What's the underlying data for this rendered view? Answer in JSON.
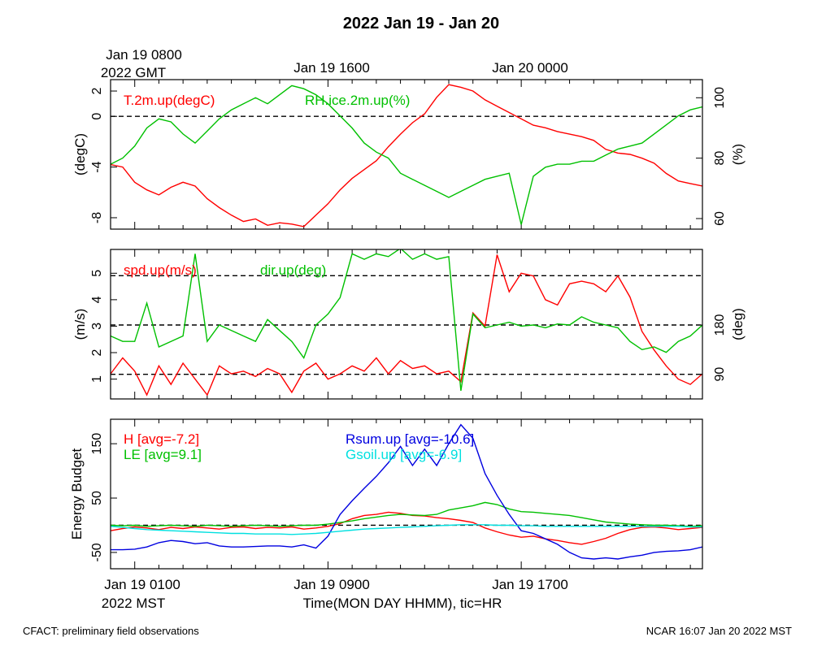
{
  "figure": {
    "title": "2022 Jan 19 - Jan 20",
    "footer_left": "CFACT: preliminary field observations",
    "footer_right": "NCAR 16:07 Jan 20 2022 MST"
  },
  "colors": {
    "red": "#ff0000",
    "green": "#00c000",
    "blue": "#0000e0",
    "cyan": "#00e0e0",
    "black": "#000000"
  },
  "top_axis": {
    "first_label_line1": "Jan 19 0800",
    "first_label_line2": "2022 GMT",
    "labels": [
      "Jan 19 1600",
      "Jan 20 0000"
    ]
  },
  "bottom_axis": {
    "labels": [
      "Jan 19 0100",
      "Jan 19 0900",
      "Jan 19 1700"
    ],
    "first_label_line2": "2022 MST",
    "xlabel": "Time(MON DAY HHMM), tic=HR"
  },
  "chart_data": [
    {
      "type": "line",
      "title": "",
      "xlabel": "Time(MON DAY HHMM), tic=HR",
      "x_unit": "hours after Jan 19 0000 MST",
      "xlim": [
        0.0,
        24.5
      ],
      "ylabel": "(degC)",
      "ylim": [
        -8.9,
        2.9
      ],
      "yticks": [
        -8,
        -4,
        0,
        2
      ],
      "ylabel_right": "(%)",
      "ylim_right": [
        56.5,
        106
      ],
      "yticks_right": [
        60,
        80,
        100
      ],
      "reference_lines": [
        0
      ],
      "series": [
        {
          "name": "T.2m.up(degC)",
          "axis": "left",
          "color": "#ff0000",
          "x": [
            0.0,
            0.5,
            1.0,
            1.5,
            2.0,
            2.5,
            3.0,
            3.5,
            4.0,
            4.5,
            5.0,
            5.5,
            6.0,
            6.5,
            7.0,
            7.5,
            8.0,
            8.5,
            9.0,
            9.5,
            10.0,
            10.5,
            11.0,
            11.5,
            12.0,
            12.5,
            13.0,
            13.5,
            14.0,
            14.5,
            15.0,
            15.5,
            16.0,
            16.5,
            17.0,
            17.5,
            18.0,
            18.5,
            19.0,
            19.5,
            20.0,
            20.5,
            21.0,
            21.5,
            22.0,
            22.5,
            23.0,
            23.5,
            24.0,
            24.5
          ],
          "y": [
            -3.8,
            -4.0,
            -5.2,
            -5.8,
            -6.2,
            -5.6,
            -5.2,
            -5.5,
            -6.5,
            -7.2,
            -7.8,
            -8.3,
            -8.1,
            -8.6,
            -8.4,
            -8.5,
            -8.7,
            -7.8,
            -6.9,
            -5.8,
            -4.9,
            -4.2,
            -3.5,
            -2.4,
            -1.4,
            -0.5,
            0.2,
            1.5,
            2.5,
            2.3,
            2.0,
            1.3,
            0.8,
            0.3,
            -0.2,
            -0.7,
            -0.9,
            -1.2,
            -1.4,
            -1.6,
            -1.9,
            -2.6,
            -2.9,
            -3.0,
            -3.3,
            -3.7,
            -4.5,
            -5.1,
            -5.3,
            -5.5
          ]
        },
        {
          "name": "RH.ice.2m.up(%)",
          "axis": "right",
          "color": "#00c000",
          "x": [
            0.0,
            0.5,
            1.0,
            1.5,
            2.0,
            2.5,
            3.0,
            3.5,
            4.0,
            4.5,
            5.0,
            5.5,
            6.0,
            6.5,
            7.0,
            7.5,
            8.0,
            8.5,
            9.0,
            9.5,
            10.0,
            10.5,
            11.0,
            11.5,
            12.0,
            12.5,
            13.0,
            13.5,
            14.0,
            14.5,
            15.0,
            15.5,
            16.0,
            16.5,
            17.0,
            17.5,
            18.0,
            18.5,
            19.0,
            19.5,
            20.0,
            20.5,
            21.0,
            21.5,
            22.0,
            22.5,
            23.0,
            23.5,
            24.0,
            24.5
          ],
          "y": [
            78,
            80,
            84,
            90,
            93,
            92,
            88,
            85,
            89,
            93,
            96,
            98,
            100,
            98,
            101,
            104,
            103,
            101,
            98,
            94,
            90,
            85,
            82,
            80,
            75,
            73,
            71,
            69,
            67,
            69,
            71,
            73,
            74,
            75,
            58,
            74,
            77,
            78,
            78,
            79,
            79,
            81,
            83,
            84,
            85,
            88,
            91,
            94,
            96,
            97
          ]
        }
      ]
    },
    {
      "type": "line",
      "title": "",
      "x_unit": "hours after Jan 19 0000 MST",
      "xlim": [
        0.0,
        24.5
      ],
      "ylabel": "(m/s)",
      "ylim": [
        0.25,
        5.9
      ],
      "yticks": [
        1,
        2,
        3,
        4,
        5
      ],
      "ylabel_right": "(deg)",
      "ylim_right": [
        45,
        318
      ],
      "yticks_right": [
        90,
        180
      ],
      "reference_lines_right": [
        90,
        180,
        270
      ],
      "series": [
        {
          "name": "spd.up(m/s)",
          "axis": "left",
          "color": "#ff0000",
          "x": [
            0.0,
            0.5,
            1.0,
            1.5,
            2.0,
            2.5,
            3.0,
            3.5,
            4.0,
            4.5,
            5.0,
            5.5,
            6.0,
            6.5,
            7.0,
            7.5,
            8.0,
            8.5,
            9.0,
            9.5,
            10.0,
            10.5,
            11.0,
            11.5,
            12.0,
            12.5,
            13.0,
            13.5,
            14.0,
            14.5,
            15.0,
            15.5,
            16.0,
            16.5,
            17.0,
            17.5,
            18.0,
            18.5,
            19.0,
            19.5,
            20.0,
            20.5,
            21.0,
            21.5,
            22.0,
            22.5,
            23.0,
            23.5,
            24.0,
            24.5
          ],
          "y": [
            1.2,
            1.8,
            1.3,
            0.4,
            1.5,
            0.8,
            1.6,
            1.0,
            0.4,
            1.5,
            1.2,
            1.3,
            1.1,
            1.4,
            1.2,
            0.5,
            1.3,
            1.6,
            1.0,
            1.2,
            1.5,
            1.3,
            1.8,
            1.2,
            1.7,
            1.4,
            1.5,
            1.2,
            1.3,
            0.9,
            3.5,
            3.0,
            5.7,
            4.3,
            5.0,
            4.9,
            4.0,
            3.8,
            4.6,
            4.7,
            4.6,
            4.3,
            4.9,
            4.1,
            2.8,
            2.1,
            1.5,
            1.0,
            0.8,
            1.2
          ]
        },
        {
          "name": "dir.up(deg)",
          "axis": "right",
          "color": "#00c000",
          "x": [
            0.0,
            0.5,
            1.0,
            1.5,
            2.0,
            2.5,
            3.0,
            3.5,
            4.0,
            4.5,
            5.0,
            5.5,
            6.0,
            6.5,
            7.0,
            7.5,
            8.0,
            8.5,
            9.0,
            9.5,
            10.0,
            10.5,
            11.0,
            11.5,
            12.0,
            12.5,
            13.0,
            13.5,
            14.0,
            14.5,
            15.0,
            15.5,
            16.0,
            16.5,
            17.0,
            17.5,
            18.0,
            18.5,
            19.0,
            19.5,
            20.0,
            20.5,
            21.0,
            21.5,
            22.0,
            22.5,
            23.0,
            23.5,
            24.0,
            24.5
          ],
          "y": [
            160,
            150,
            150,
            220,
            140,
            150,
            160,
            310,
            150,
            180,
            170,
            160,
            150,
            190,
            170,
            150,
            120,
            180,
            200,
            230,
            310,
            300,
            310,
            305,
            320,
            300,
            310,
            300,
            305,
            60,
            200,
            175,
            180,
            185,
            178,
            180,
            175,
            182,
            180,
            195,
            185,
            180,
            175,
            150,
            135,
            140,
            130,
            150,
            160,
            180
          ]
        }
      ]
    },
    {
      "type": "line",
      "title": "",
      "xlabel": "Time(MON DAY HHMM), tic=HR",
      "x_unit": "hours after Jan 19 0000 MST",
      "xlim": [
        0.0,
        24.5
      ],
      "ylabel": "Energy Budget",
      "ylim": [
        -80,
        195
      ],
      "yticks": [
        -50,
        50,
        150
      ],
      "reference_lines": [
        0
      ],
      "series": [
        {
          "name": "H [avg=-7.2]",
          "color": "#ff0000",
          "x": [
            0.0,
            0.5,
            1.0,
            1.5,
            2.0,
            2.5,
            3.0,
            3.5,
            4.0,
            4.5,
            5.0,
            5.5,
            6.0,
            6.5,
            7.0,
            7.5,
            8.0,
            8.5,
            9.0,
            9.5,
            10.0,
            10.5,
            11.0,
            11.5,
            12.0,
            12.5,
            13.0,
            13.5,
            14.0,
            14.5,
            15.0,
            15.5,
            16.0,
            16.5,
            17.0,
            17.5,
            18.0,
            18.5,
            19.0,
            19.5,
            20.0,
            20.5,
            21.0,
            21.5,
            22.0,
            22.5,
            23.0,
            23.5,
            24.0,
            24.5
          ],
          "y": [
            -10,
            -6,
            -3,
            -5,
            -8,
            -4,
            -6,
            -3,
            -5,
            -7,
            -4,
            -3,
            -6,
            -4,
            -5,
            -3,
            -7,
            -5,
            -2,
            3,
            12,
            18,
            20,
            24,
            22,
            18,
            17,
            14,
            12,
            9,
            5,
            -5,
            -12,
            -18,
            -22,
            -20,
            -25,
            -28,
            -32,
            -35,
            -30,
            -24,
            -15,
            -8,
            -4,
            -3,
            -5,
            -8,
            -6,
            -4
          ]
        },
        {
          "name": "LE [avg=9.1]",
          "color": "#00c000",
          "x": [
            0.0,
            0.5,
            1.0,
            1.5,
            2.0,
            2.5,
            3.0,
            3.5,
            4.0,
            4.5,
            5.0,
            5.5,
            6.0,
            6.5,
            7.0,
            7.5,
            8.0,
            8.5,
            9.0,
            9.5,
            10.0,
            10.5,
            11.0,
            11.5,
            12.0,
            12.5,
            13.0,
            13.5,
            14.0,
            14.5,
            15.0,
            15.5,
            16.0,
            16.5,
            17.0,
            17.5,
            18.0,
            18.5,
            19.0,
            19.5,
            20.0,
            20.5,
            21.0,
            21.5,
            22.0,
            22.5,
            23.0,
            23.5,
            24.0,
            24.5
          ],
          "y": [
            0,
            -1,
            0,
            -2,
            -1,
            0,
            -1,
            -2,
            0,
            -1,
            -2,
            -1,
            0,
            -1,
            -2,
            -1,
            0,
            0,
            2,
            5,
            8,
            12,
            15,
            18,
            20,
            19,
            18,
            20,
            28,
            32,
            36,
            42,
            38,
            30,
            25,
            24,
            22,
            20,
            18,
            14,
            10,
            6,
            4,
            2,
            1,
            0,
            0,
            -1,
            -2,
            -1
          ]
        },
        {
          "name": "Rsum.up [avg=-10.6]",
          "color": "#0000e0",
          "x": [
            0.0,
            0.5,
            1.0,
            1.5,
            2.0,
            2.5,
            3.0,
            3.5,
            4.0,
            4.5,
            5.0,
            5.5,
            6.0,
            6.5,
            7.0,
            7.5,
            8.0,
            8.5,
            9.0,
            9.5,
            10.0,
            10.5,
            11.0,
            11.5,
            12.0,
            12.5,
            13.0,
            13.5,
            14.0,
            14.5,
            15.0,
            15.5,
            16.0,
            16.5,
            17.0,
            17.5,
            18.0,
            18.5,
            19.0,
            19.5,
            20.0,
            20.5,
            21.0,
            21.5,
            22.0,
            22.5,
            23.0,
            23.5,
            24.0,
            24.5
          ],
          "y": [
            -45,
            -45,
            -44,
            -40,
            -32,
            -28,
            -30,
            -34,
            -32,
            -38,
            -40,
            -40,
            -39,
            -38,
            -38,
            -40,
            -36,
            -42,
            -20,
            20,
            45,
            68,
            90,
            115,
            145,
            110,
            140,
            110,
            150,
            185,
            160,
            95,
            55,
            20,
            -10,
            -15,
            -25,
            -35,
            -50,
            -60,
            -62,
            -60,
            -62,
            -58,
            -55,
            -50,
            -48,
            -47,
            -45,
            -40
          ]
        },
        {
          "name": "Gsoil.up [avg=-6.9]",
          "color": "#00e0e0",
          "x": [
            0.0,
            0.5,
            1.0,
            1.5,
            2.0,
            2.5,
            3.0,
            3.5,
            4.0,
            4.5,
            5.0,
            5.5,
            6.0,
            6.5,
            7.0,
            7.5,
            8.0,
            8.5,
            9.0,
            9.5,
            10.0,
            10.5,
            11.0,
            11.5,
            12.0,
            12.5,
            13.0,
            13.5,
            14.0,
            14.5,
            15.0,
            15.5,
            16.0,
            16.5,
            17.0,
            17.5,
            18.0,
            18.5,
            19.0,
            19.5,
            20.0,
            20.5,
            21.0,
            21.5,
            22.0,
            22.5,
            23.0,
            23.5,
            24.0,
            24.5
          ],
          "y": [
            -2,
            -4,
            -6,
            -8,
            -9,
            -10,
            -11,
            -12,
            -13,
            -14,
            -15,
            -15,
            -16,
            -16,
            -16,
            -17,
            -16,
            -15,
            -13,
            -11,
            -9,
            -7,
            -6,
            -5,
            -4,
            -3,
            -2,
            -1,
            0,
            1,
            1,
            1,
            0,
            0,
            -1,
            -1,
            -2,
            -2,
            -2,
            -2,
            -2,
            -2,
            -2,
            -2,
            -2,
            -2,
            -2,
            -2,
            -3,
            -3
          ]
        }
      ]
    }
  ]
}
